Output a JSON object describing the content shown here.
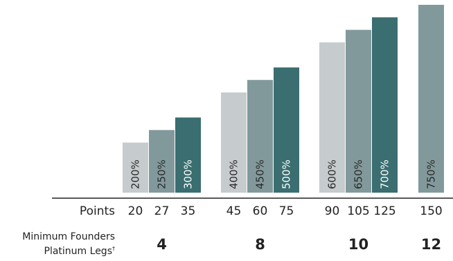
{
  "chart_data": {
    "type": "bar",
    "groups": [
      {
        "min_legs": "4",
        "bars": [
          {
            "points": "20",
            "label": "200%",
            "value": 200,
            "color": "#c6cbcd"
          },
          {
            "points": "27",
            "label": "250%",
            "value": 250,
            "color": "#82999c"
          },
          {
            "points": "35",
            "label": "300%",
            "value": 300,
            "color": "#3a6e71"
          }
        ]
      },
      {
        "min_legs": "8",
        "bars": [
          {
            "points": "45",
            "label": "400%",
            "value": 400,
            "color": "#c6cbcd"
          },
          {
            "points": "60",
            "label": "450%",
            "value": 450,
            "color": "#82999c"
          },
          {
            "points": "75",
            "label": "500%",
            "value": 500,
            "color": "#3a6e71"
          }
        ]
      },
      {
        "min_legs": "10",
        "bars": [
          {
            "points": "90",
            "label": "600%",
            "value": 600,
            "color": "#c6cbcd"
          },
          {
            "points": "105",
            "label": "650%",
            "value": 650,
            "color": "#82999c"
          },
          {
            "points": "125",
            "label": "700%",
            "value": 700,
            "color": "#3a6e71"
          }
        ]
      },
      {
        "min_legs": "12",
        "bars": [
          {
            "points": "150",
            "label": "750%",
            "value": 750,
            "color": "#82999c"
          }
        ]
      }
    ],
    "row_label_points": "Points",
    "row_label_legs": "Minimum Founders Platinum Legs",
    "row_label_legs_line1": "Minimum Founders",
    "row_label_legs_line2": "Platinum Legs",
    "row_label_legs_mark": "†",
    "grid": false
  }
}
